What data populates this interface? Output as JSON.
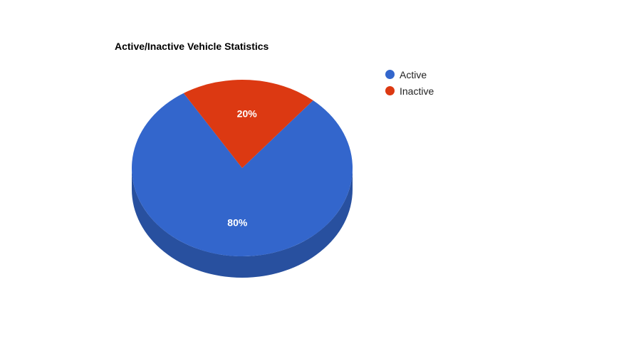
{
  "chart_data": {
    "type": "pie",
    "title": "Active/Inactive Vehicle Statistics",
    "three_d": true,
    "categories": [
      "Active",
      "Inactive"
    ],
    "values": [
      80,
      20
    ],
    "data_labels": [
      "80%",
      "20%"
    ],
    "colors": [
      "#3366cc",
      "#dc3912"
    ],
    "legend_position": "right"
  }
}
